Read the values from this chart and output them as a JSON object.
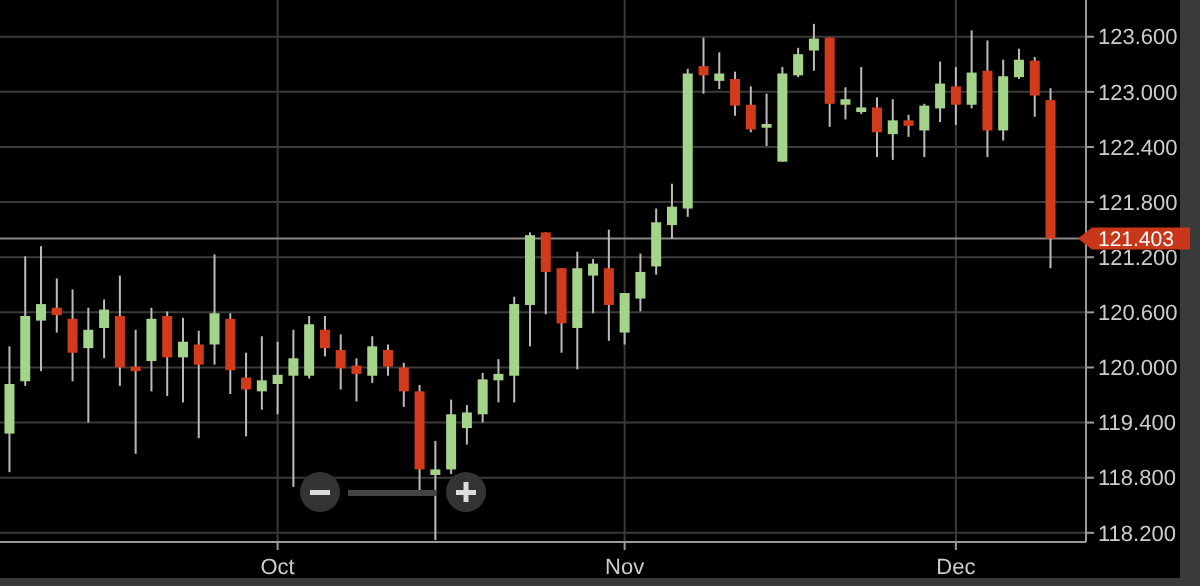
{
  "chart_data": {
    "type": "candlestick",
    "categories": [
      null,
      null,
      null,
      null,
      null,
      null,
      null,
      null,
      null,
      null,
      null,
      null,
      null,
      null,
      null,
      null,
      null,
      "Oct",
      null,
      null,
      null,
      null,
      null,
      null,
      null,
      null,
      null,
      null,
      null,
      null,
      null,
      null,
      null,
      null,
      null,
      null,
      null,
      null,
      null,
      "Nov",
      null,
      null,
      null,
      null,
      null,
      null,
      null,
      null,
      null,
      null,
      null,
      null,
      null,
      null,
      null,
      null,
      null,
      null,
      null,
      null,
      "Dec",
      null,
      null,
      null,
      null,
      null,
      null
    ],
    "ohlc": [
      [
        119.28,
        120.23,
        118.86,
        119.82
      ],
      [
        119.85,
        121.21,
        119.8,
        120.56
      ],
      [
        120.51,
        121.32,
        119.96,
        120.69
      ],
      [
        120.65,
        120.97,
        120.38,
        120.57
      ],
      [
        120.53,
        120.85,
        119.85,
        120.16
      ],
      [
        120.21,
        120.65,
        119.4,
        120.41
      ],
      [
        120.43,
        120.74,
        120.1,
        120.63
      ],
      [
        120.56,
        121.0,
        119.8,
        120.0
      ],
      [
        120.01,
        120.41,
        119.06,
        119.96
      ],
      [
        120.07,
        120.65,
        119.74,
        120.53
      ],
      [
        120.56,
        120.61,
        119.69,
        120.11
      ],
      [
        120.11,
        120.54,
        119.62,
        120.28
      ],
      [
        120.25,
        120.4,
        119.23,
        120.03
      ],
      [
        120.25,
        121.23,
        120.03,
        120.59
      ],
      [
        120.53,
        120.59,
        119.71,
        119.97
      ],
      [
        119.89,
        120.16,
        119.25,
        119.76
      ],
      [
        119.74,
        120.34,
        119.54,
        119.86
      ],
      [
        119.82,
        120.28,
        119.49,
        119.92
      ],
      [
        119.91,
        120.41,
        118.7,
        120.1
      ],
      [
        119.91,
        120.56,
        119.88,
        120.47
      ],
      [
        120.41,
        120.56,
        120.12,
        120.21
      ],
      [
        120.19,
        120.36,
        119.76,
        119.99
      ],
      [
        120.02,
        120.1,
        119.63,
        119.93
      ],
      [
        119.91,
        120.34,
        119.83,
        120.23
      ],
      [
        120.19,
        120.25,
        119.91,
        120.01
      ],
      [
        120.0,
        120.05,
        119.57,
        119.74
      ],
      [
        119.74,
        119.81,
        118.64,
        118.89
      ],
      [
        118.83,
        119.2,
        118.12,
        118.89
      ],
      [
        118.89,
        119.65,
        118.84,
        119.49
      ],
      [
        119.34,
        119.59,
        119.16,
        119.51
      ],
      [
        119.49,
        119.94,
        119.4,
        119.87
      ],
      [
        119.86,
        120.09,
        119.62,
        119.93
      ],
      [
        119.91,
        120.77,
        119.62,
        120.69
      ],
      [
        120.68,
        121.47,
        120.23,
        121.44
      ],
      [
        121.47,
        121.47,
        120.58,
        121.04
      ],
      [
        121.08,
        121.08,
        120.16,
        120.48
      ],
      [
        120.43,
        121.26,
        119.98,
        121.08
      ],
      [
        121.0,
        121.18,
        120.59,
        121.13
      ],
      [
        121.08,
        121.5,
        120.29,
        120.68
      ],
      [
        120.38,
        120.81,
        120.25,
        120.81
      ],
      [
        120.75,
        121.24,
        120.61,
        121.04
      ],
      [
        121.1,
        121.73,
        121.01,
        121.58
      ],
      [
        121.55,
        122.0,
        121.4,
        121.75
      ],
      [
        121.73,
        123.25,
        121.64,
        123.2
      ],
      [
        123.28,
        123.59,
        122.98,
        123.18
      ],
      [
        123.12,
        123.43,
        123.03,
        123.2
      ],
      [
        123.14,
        123.22,
        122.74,
        122.85
      ],
      [
        122.86,
        123.06,
        122.56,
        122.59
      ],
      [
        122.61,
        122.98,
        122.41,
        122.65
      ],
      [
        122.24,
        123.27,
        122.24,
        123.2
      ],
      [
        123.18,
        123.48,
        123.16,
        123.41
      ],
      [
        123.45,
        123.74,
        123.23,
        123.58
      ],
      [
        123.59,
        123.59,
        122.62,
        122.87
      ],
      [
        122.86,
        123.05,
        122.7,
        122.92
      ],
      [
        122.78,
        123.27,
        122.76,
        122.83
      ],
      [
        122.83,
        122.94,
        122.29,
        122.56
      ],
      [
        122.54,
        122.92,
        122.26,
        122.69
      ],
      [
        122.69,
        122.75,
        122.51,
        122.63
      ],
      [
        122.58,
        122.87,
        122.29,
        122.85
      ],
      [
        122.82,
        123.33,
        122.67,
        123.09
      ],
      [
        123.06,
        123.27,
        122.64,
        122.86
      ],
      [
        122.86,
        123.67,
        122.82,
        123.21
      ],
      [
        123.23,
        123.56,
        122.29,
        122.58
      ],
      [
        122.58,
        123.35,
        122.47,
        123.17
      ],
      [
        123.16,
        123.47,
        123.14,
        123.35
      ],
      [
        123.34,
        123.38,
        122.73,
        122.96
      ],
      [
        122.91,
        123.04,
        121.08,
        121.403
      ]
    ],
    "colors": [
      "#a3d48a",
      "#a3d48a",
      "#a3d48a",
      "#d23a1c",
      "#d23a1c",
      "#a3d48a",
      "#a3d48a",
      "#d23a1c",
      "#d23a1c",
      "#a3d48a",
      "#d23a1c",
      "#a3d48a",
      "#d23a1c",
      "#a3d48a",
      "#d23a1c",
      "#d23a1c",
      "#a3d48a",
      "#a3d48a",
      "#a3d48a",
      "#a3d48a",
      "#d23a1c",
      "#d23a1c",
      "#d23a1c",
      "#a3d48a",
      "#d23a1c",
      "#d23a1c",
      "#d23a1c",
      "#a3d48a",
      "#a3d48a",
      "#a3d48a",
      "#a3d48a",
      "#a3d48a",
      "#a3d48a",
      "#a3d48a",
      "#d23a1c",
      "#d23a1c",
      "#a3d48a",
      "#a3d48a",
      "#d23a1c",
      "#a3d48a",
      "#a3d48a",
      "#a3d48a",
      "#a3d48a",
      "#a3d48a",
      "#d23a1c",
      "#a3d48a",
      "#d23a1c",
      "#d23a1c",
      "#a3d48a",
      "#a3d48a",
      "#a3d48a",
      "#a3d48a",
      "#d23a1c",
      "#a3d48a",
      "#a3d48a",
      "#d23a1c",
      "#a3d48a",
      "#d23a1c",
      "#a3d48a",
      "#a3d48a",
      "#d23a1c",
      "#a3d48a",
      "#d23a1c",
      "#a3d48a",
      "#a3d48a",
      "#d23a1c",
      "#d23a1c"
    ],
    "ylim": [
      118.1,
      124.0
    ],
    "yticks": [
      {
        "value": 118.2,
        "label": "118.200"
      },
      {
        "value": 118.8,
        "label": "118.800"
      },
      {
        "value": 119.4,
        "label": "119.400"
      },
      {
        "value": 120.0,
        "label": "120.000"
      },
      {
        "value": 120.6,
        "label": "120.600"
      },
      {
        "value": 121.2,
        "label": "121.200"
      },
      {
        "value": 121.8,
        "label": "121.800"
      },
      {
        "value": 122.4,
        "label": "122.400"
      },
      {
        "value": 123.0,
        "label": "123.000"
      },
      {
        "value": 123.6,
        "label": "123.600"
      }
    ],
    "ref_lines": [
      {
        "axis": "y",
        "value": 121.403,
        "label": "121.403",
        "color": "#888888"
      }
    ],
    "grid": true
  }
}
